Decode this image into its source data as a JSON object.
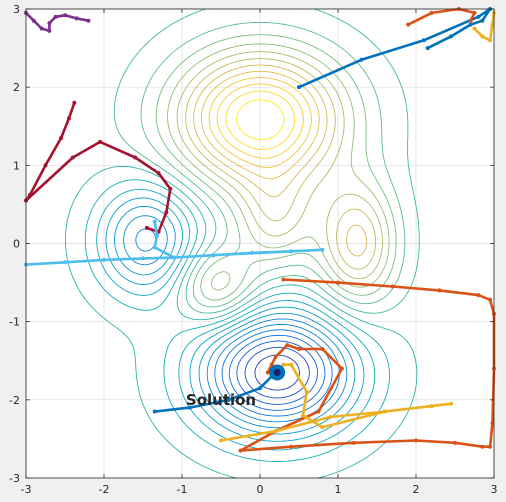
{
  "chart_data": {
    "type": "line",
    "title": "",
    "xlabel": "",
    "ylabel": "",
    "xlim": [
      -3,
      3
    ],
    "ylim": [
      -3,
      3
    ],
    "xticks": [
      -3,
      -2,
      -1,
      0,
      1,
      2,
      3
    ],
    "yticks": [
      -3,
      -2,
      -1,
      0,
      1,
      2,
      3
    ],
    "grid": true,
    "background": "#ffffff",
    "figure_background": "#f0f0f0",
    "annotation": {
      "text": "Solution",
      "x": -0.95,
      "y": -2.0
    },
    "solution_point": {
      "x": 0.22,
      "y": -1.65,
      "color": "#0072bd"
    },
    "contours": {
      "levels": 24,
      "colormap": "parula",
      "description_components": [
        {
          "x": 0.0,
          "y": 1.6,
          "a": 1.0,
          "sx": 0.75,
          "sy": 0.6
        },
        {
          "x": 1.25,
          "y": 0.0,
          "a": 0.55,
          "sx": 0.35,
          "sy": 0.55
        },
        {
          "x": 0.2,
          "y": 0.3,
          "a": 0.35,
          "sx": 0.35,
          "sy": 0.45
        },
        {
          "x": -0.55,
          "y": -0.55,
          "a": 0.4,
          "sx": 0.35,
          "sy": 0.35
        },
        {
          "x": -1.45,
          "y": 0.05,
          "a": -0.55,
          "sx": 0.45,
          "sy": 0.5
        },
        {
          "x": 0.22,
          "y": -1.65,
          "a": -1.0,
          "sx": 0.7,
          "sy": 0.55
        }
      ]
    },
    "series": [
      {
        "color": "#7e2f8e",
        "points": [
          [
            -3.0,
            2.95
          ],
          [
            -2.9,
            2.85
          ],
          [
            -2.8,
            2.75
          ],
          [
            -2.7,
            2.72
          ],
          [
            -2.7,
            2.82
          ],
          [
            -2.62,
            2.9
          ],
          [
            -2.5,
            2.92
          ],
          [
            -2.35,
            2.88
          ],
          [
            -2.2,
            2.85
          ]
        ]
      },
      {
        "color": "#a2142f",
        "points": [
          [
            -2.38,
            1.8
          ],
          [
            -2.45,
            1.6
          ],
          [
            -2.55,
            1.35
          ],
          [
            -2.75,
            1.0
          ],
          [
            -2.95,
            0.62
          ],
          [
            -3.0,
            0.55
          ],
          [
            -2.4,
            1.1
          ],
          [
            -2.05,
            1.3
          ],
          [
            -1.6,
            1.1
          ],
          [
            -1.3,
            0.9
          ],
          [
            -1.15,
            0.7
          ],
          [
            -1.2,
            0.4
          ],
          [
            -1.3,
            0.15
          ],
          [
            -1.45,
            0.2
          ]
        ]
      },
      {
        "color": "#4dbeee",
        "points": [
          [
            -3.0,
            -0.27
          ],
          [
            -2.5,
            -0.24
          ],
          [
            -2.0,
            -0.21
          ],
          [
            -1.5,
            -0.19
          ],
          [
            -1.1,
            -0.18
          ],
          [
            -0.6,
            -0.15
          ],
          [
            -0.1,
            -0.12
          ],
          [
            0.4,
            -0.1
          ],
          [
            0.8,
            -0.08
          ],
          [
            0.4,
            -0.1
          ],
          [
            -0.6,
            -0.15
          ],
          [
            -1.1,
            -0.18
          ],
          [
            -1.35,
            -0.05
          ],
          [
            -1.32,
            0.1
          ],
          [
            -1.35,
            0.28
          ]
        ]
      },
      {
        "color": "#0072bd",
        "points": [
          [
            0.5,
            2.0
          ],
          [
            1.3,
            2.35
          ],
          [
            2.1,
            2.6
          ],
          [
            2.8,
            2.9
          ],
          [
            2.95,
            3.0
          ],
          [
            2.85,
            2.85
          ],
          [
            2.7,
            2.8
          ],
          [
            2.45,
            2.65
          ],
          [
            2.15,
            2.5
          ]
        ]
      },
      {
        "color": "#d95319",
        "points": [
          [
            1.9,
            2.8
          ],
          [
            2.2,
            2.95
          ],
          [
            2.55,
            3.0
          ],
          [
            2.75,
            2.95
          ],
          [
            2.7,
            2.85
          ]
        ]
      },
      {
        "color": "#edb120",
        "points": [
          [
            2.75,
            2.75
          ],
          [
            2.85,
            2.65
          ],
          [
            2.95,
            2.6
          ],
          [
            2.98,
            2.8
          ],
          [
            3.0,
            2.95
          ]
        ]
      },
      {
        "color": "#d95319",
        "points": [
          [
            0.3,
            -0.46
          ],
          [
            1.0,
            -0.5
          ],
          [
            1.7,
            -0.55
          ],
          [
            2.3,
            -0.6
          ],
          [
            2.8,
            -0.66
          ],
          [
            2.95,
            -0.72
          ],
          [
            3.0,
            -0.9
          ],
          [
            3.0,
            -1.6
          ],
          [
            2.98,
            -2.3
          ],
          [
            2.95,
            -2.6
          ],
          [
            2.85,
            -2.6
          ],
          [
            2.5,
            -2.55
          ],
          [
            2.0,
            -2.52
          ],
          [
            1.2,
            -2.55
          ],
          [
            0.4,
            -2.6
          ],
          [
            -0.25,
            -2.65
          ],
          [
            0.2,
            -2.4
          ],
          [
            0.75,
            -2.15
          ],
          [
            1.05,
            -1.6
          ],
          [
            0.8,
            -1.35
          ],
          [
            0.5,
            -1.35
          ],
          [
            0.35,
            -1.3
          ],
          [
            0.2,
            -1.45
          ],
          [
            0.1,
            -1.65
          ],
          [
            0.15,
            -1.55
          ],
          [
            0.22,
            -1.65
          ]
        ]
      },
      {
        "color": "#edb120",
        "points": [
          [
            -0.5,
            -2.52
          ],
          [
            0.2,
            -2.4
          ],
          [
            0.9,
            -2.22
          ],
          [
            1.6,
            -2.15
          ],
          [
            2.2,
            -2.08
          ],
          [
            2.45,
            -2.05
          ],
          [
            1.6,
            -2.15
          ],
          [
            0.8,
            -2.35
          ],
          [
            0.55,
            -2.2
          ],
          [
            0.6,
            -1.9
          ],
          [
            0.4,
            -1.55
          ],
          [
            0.3,
            -1.55
          ],
          [
            0.22,
            -1.65
          ]
        ]
      },
      {
        "color": "#0072bd",
        "points": [
          [
            -1.35,
            -2.15
          ],
          [
            -0.9,
            -2.1
          ],
          [
            -0.4,
            -2.0
          ],
          [
            0.0,
            -1.85
          ],
          [
            0.15,
            -1.7
          ],
          [
            0.22,
            -1.65
          ]
        ]
      }
    ]
  }
}
